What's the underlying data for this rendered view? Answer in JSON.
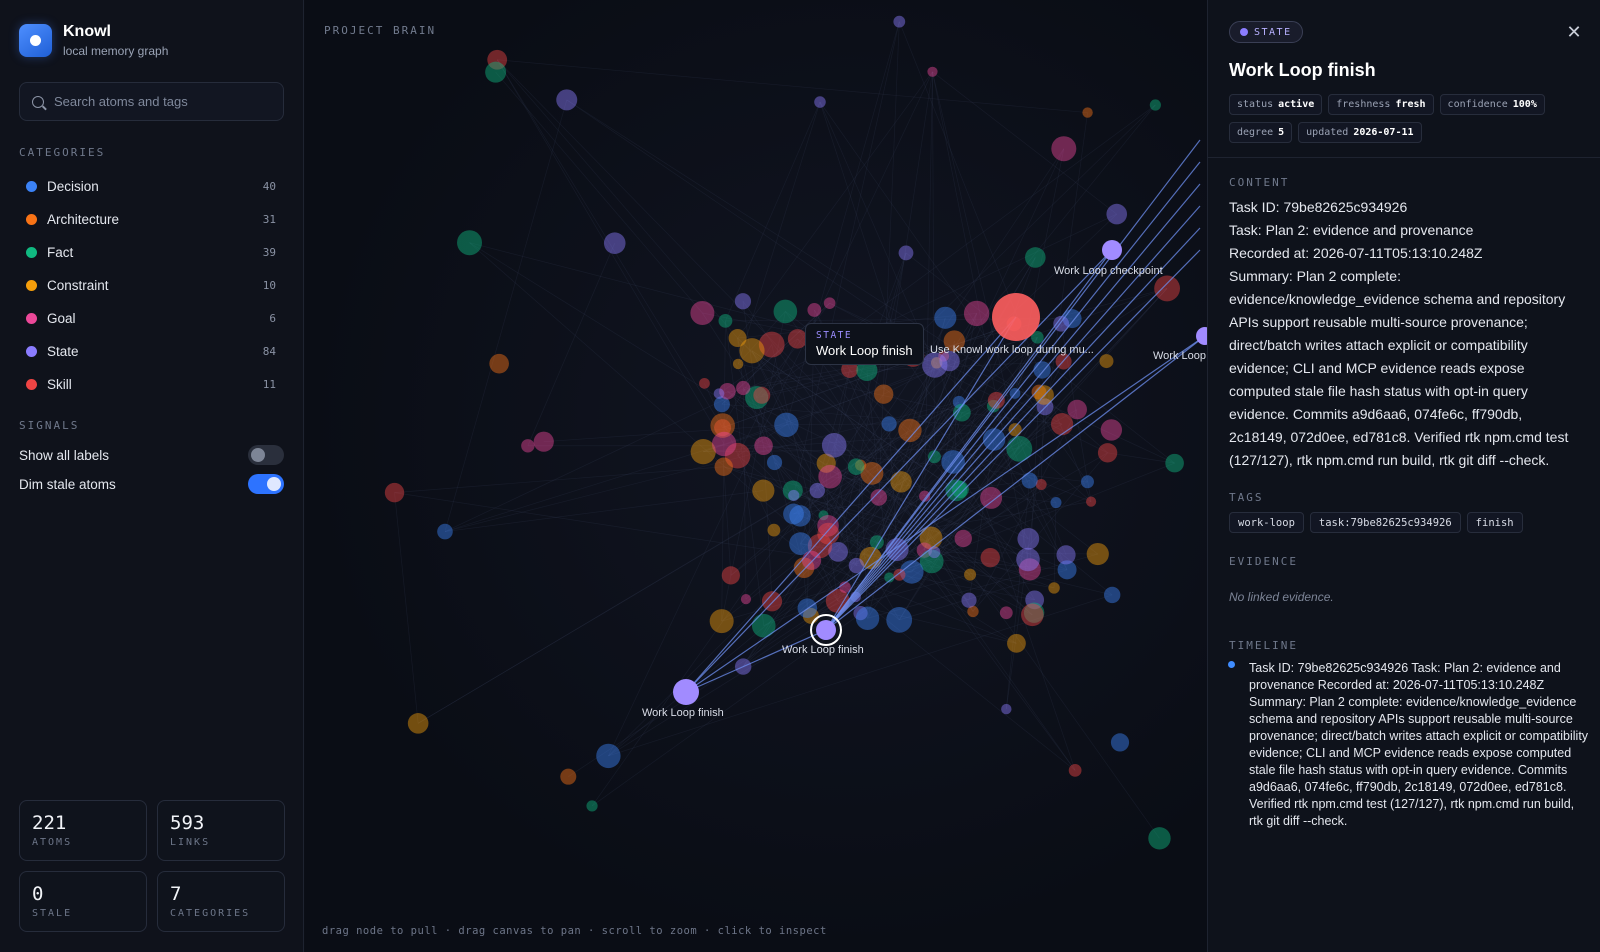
{
  "brand": {
    "name": "Knowl",
    "subtitle": "local memory graph"
  },
  "search": {
    "placeholder": "Search atoms and tags"
  },
  "categories_label": "CATEGORIES",
  "categories": [
    {
      "label": "Decision",
      "count": "40",
      "color": "#3b82f6"
    },
    {
      "label": "Architecture",
      "count": "31",
      "color": "#f97316"
    },
    {
      "label": "Fact",
      "count": "39",
      "color": "#10b981"
    },
    {
      "label": "Constraint",
      "count": "10",
      "color": "#f59e0b"
    },
    {
      "label": "Goal",
      "count": "6",
      "color": "#ec4899"
    },
    {
      "label": "State",
      "count": "84",
      "color": "#8b7cff"
    },
    {
      "label": "Skill",
      "count": "11",
      "color": "#ef4444"
    }
  ],
  "signals_label": "SIGNALS",
  "signals": [
    {
      "label": "Show all labels",
      "on": false
    },
    {
      "label": "Dim stale atoms",
      "on": true
    }
  ],
  "stats": [
    {
      "value": "221",
      "label": "ATOMS"
    },
    {
      "value": "593",
      "label": "LINKS"
    },
    {
      "value": "0",
      "label": "STALE"
    },
    {
      "value": "7",
      "label": "CATEGORIES"
    }
  ],
  "canvas": {
    "title": "PROJECT BRAIN",
    "hint": "drag node to pull · drag canvas to pan · scroll to zoom · click to inspect",
    "tooltip": {
      "kind": "STATE",
      "title": "Work Loop finish"
    },
    "labels": [
      "Work Loop checkpoint",
      "Use Knowl work loop during mu...",
      "Work Loop",
      "Work Loop finish",
      "Work Loop finish"
    ]
  },
  "inspector": {
    "kind": "STATE",
    "title": "Work Loop finish",
    "meta": [
      {
        "key": "status",
        "value": "active"
      },
      {
        "key": "freshness",
        "value": "fresh"
      },
      {
        "key": "confidence",
        "value": "100%"
      },
      {
        "key": "degree",
        "value": "5"
      },
      {
        "key": "updated",
        "value": "2026-07-11"
      }
    ],
    "content_label": "CONTENT",
    "content": "Task ID: 79be82625c934926\nTask: Plan 2: evidence and provenance\nRecorded at: 2026-07-11T05:13:10.248Z\nSummary: Plan 2 complete: evidence/knowledge_evidence schema and repository APIs support reusable multi-source provenance; direct/batch writes attach explicit or compatibility evidence; CLI and MCP evidence reads expose computed stale file hash status with opt-in query evidence. Commits a9d6aa6, 074fe6c, ff790db, 2c18149, 072d0ee, ed781c8. Verified rtk npm.cmd test (127/127), rtk npm.cmd run build, rtk git diff --check.",
    "tags_label": "TAGS",
    "tags": [
      "work-loop",
      "task:79be82625c934926",
      "finish"
    ],
    "evidence_label": "EVIDENCE",
    "evidence_empty": "No linked evidence.",
    "timeline_label": "TIMELINE",
    "timeline_entry": "Task ID: 79be82625c934926 Task: Plan 2: evidence and provenance Recorded at: 2026-07-11T05:13:10.248Z Summary: Plan 2 complete: evidence/knowledge_evidence schema and repository APIs support reusable multi-source provenance; direct/batch writes attach explicit or compatibility evidence; CLI and MCP evidence reads expose computed stale file hash status with opt-in query evidence. Commits a9d6aa6, 074fe6c, ff790db, 2c18149, 072d0ee, ed781c8. Verified rtk npm.cmd test (127/127), rtk npm.cmd run build, rtk git diff --check."
  }
}
